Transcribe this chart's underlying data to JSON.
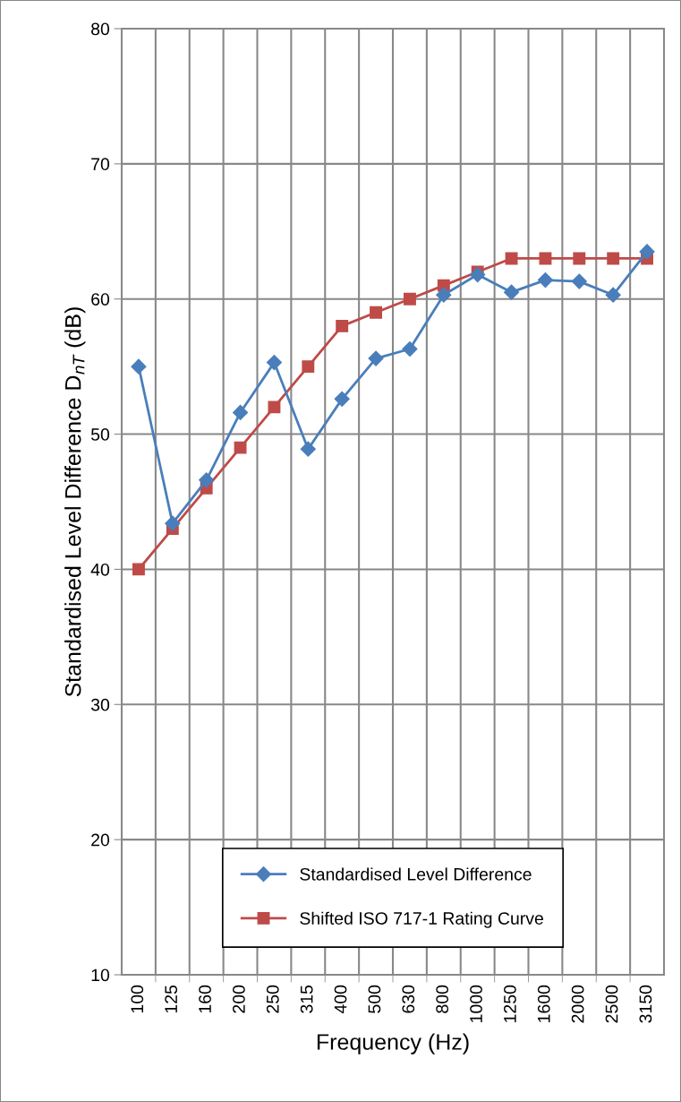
{
  "chart_data": {
    "type": "line",
    "xlabel": "Frequency (Hz)",
    "ylabel": "Standardised Level Difference D$_{nT}$ (dB)",
    "categories": [
      "100",
      "125",
      "160",
      "200",
      "250",
      "315",
      "400",
      "500",
      "630",
      "800",
      "1000",
      "1250",
      "1600",
      "2000",
      "2500",
      "3150"
    ],
    "series": [
      {
        "name": "Standardised Level Difference",
        "color": "#4a7ebb",
        "marker": "diamond",
        "values": [
          55.0,
          43.4,
          46.6,
          51.6,
          55.3,
          48.9,
          52.6,
          55.6,
          56.3,
          60.3,
          61.8,
          60.5,
          61.4,
          61.3,
          60.3,
          63.5
        ]
      },
      {
        "name": "Shifted ISO 717-1 Rating Curve",
        "color": "#be4b48",
        "marker": "square",
        "values": [
          40,
          43,
          46,
          49,
          52,
          55,
          58,
          59,
          60,
          61,
          62,
          63,
          63,
          63,
          63,
          63
        ]
      }
    ],
    "ylim": [
      10,
      80
    ],
    "yticks": [
      10,
      20,
      30,
      40,
      50,
      60,
      70,
      80
    ],
    "grid": true,
    "legend": "bottom",
    "line_style": "solid"
  }
}
